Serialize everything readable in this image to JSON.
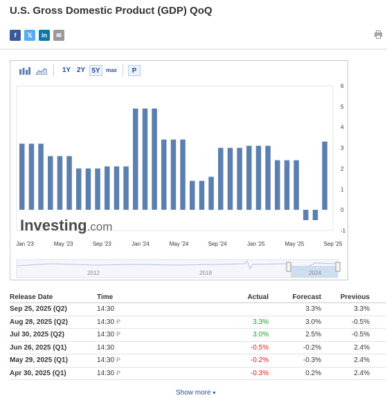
{
  "page": {
    "title": "U.S. Gross Domestic Product (GDP) QoQ"
  },
  "share": {
    "facebook": "f",
    "twitter": "𝕏",
    "linkedin": "in",
    "email": "✉"
  },
  "toolbar": {
    "ranges": [
      "1Y",
      "2Y",
      "5Y",
      "max"
    ],
    "selected_range": "5Y",
    "p_button": "P"
  },
  "chart_data": {
    "type": "bar",
    "color": "#5b7faf",
    "watermark": "Investing.com",
    "x_tick_labels": [
      "Jan '23",
      "May '23",
      "Sep '23",
      "Jan '24",
      "May '24",
      "Sep '24",
      "Jan '25",
      "May '25",
      "Sep '25"
    ],
    "y_ticks": [
      6,
      5,
      4,
      3,
      2,
      1,
      0,
      -1
    ],
    "ylim": [
      -1,
      6
    ],
    "values": [
      3.2,
      3.2,
      3.2,
      2.6,
      2.6,
      2.6,
      2.0,
      2.0,
      2.0,
      2.1,
      2.1,
      2.1,
      4.9,
      4.9,
      4.9,
      3.4,
      3.4,
      3.4,
      1.4,
      1.4,
      1.6,
      3.0,
      3.0,
      3.0,
      3.1,
      3.1,
      3.1,
      2.4,
      2.4,
      2.4,
      -0.5,
      -0.5,
      3.3
    ],
    "navigator_labels": [
      "2012",
      "2018",
      "2024"
    ]
  },
  "table": {
    "headers": {
      "release_date": "Release Date",
      "time": "Time",
      "actual": "Actual",
      "forecast": "Forecast",
      "previous": "Previous"
    },
    "rows": [
      {
        "date": "Sep 25, 2025 (Q2)",
        "time": "14:30",
        "prelim": "",
        "actual": "",
        "actual_color": "",
        "forecast": "3.3%",
        "previous": "3.3%"
      },
      {
        "date": "Aug 28, 2025 (Q2)",
        "time": "14:30",
        "prelim": "P",
        "actual": "3.3%",
        "actual_color": "pos",
        "forecast": "3.0%",
        "previous": "-0.5%"
      },
      {
        "date": "Jul 30, 2025 (Q2)",
        "time": "14:30",
        "prelim": "P",
        "actual": "3.0%",
        "actual_color": "pos",
        "forecast": "2.5%",
        "previous": "-0.5%"
      },
      {
        "date": "Jun 26, 2025 (Q1)",
        "time": "14:30",
        "prelim": "",
        "actual": "-0.5%",
        "actual_color": "neg",
        "forecast": "-0.2%",
        "previous": "2.4%"
      },
      {
        "date": "May 29, 2025 (Q1)",
        "time": "14:30",
        "prelim": "P",
        "actual": "-0.2%",
        "actual_color": "neg",
        "forecast": "-0.3%",
        "previous": "2.4%"
      },
      {
        "date": "Apr 30, 2025 (Q1)",
        "time": "14:30",
        "prelim": "P",
        "actual": "-0.3%",
        "actual_color": "neg",
        "forecast": "0.2%",
        "previous": "2.4%"
      }
    ]
  },
  "footer": {
    "show_more": "Show more"
  }
}
